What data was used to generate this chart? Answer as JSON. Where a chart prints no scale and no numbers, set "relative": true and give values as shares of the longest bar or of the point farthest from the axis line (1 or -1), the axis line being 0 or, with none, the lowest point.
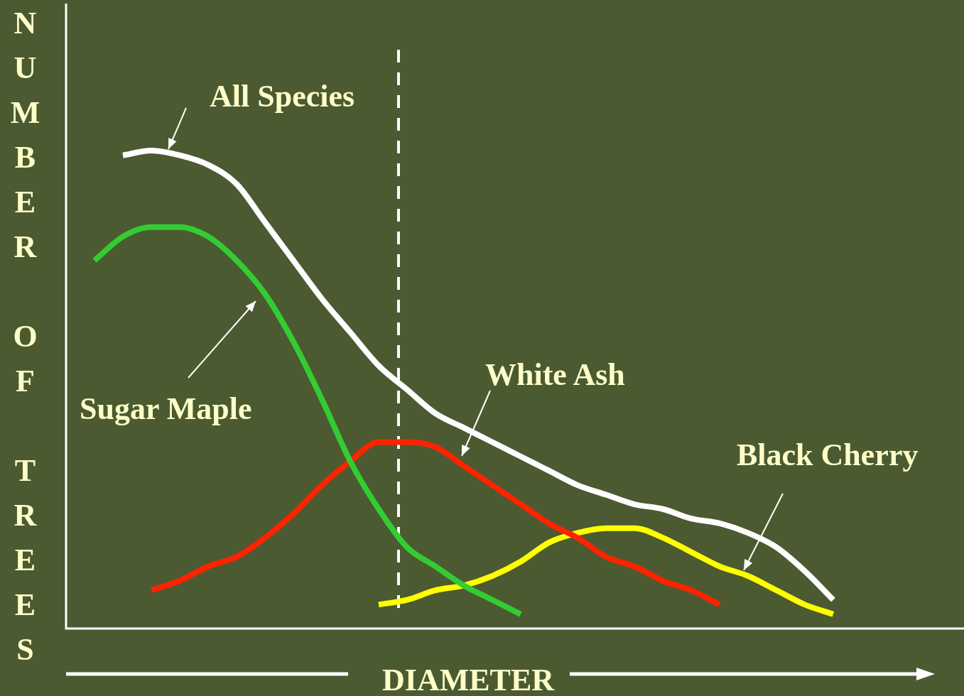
{
  "chart_data": {
    "type": "line",
    "relative": true,
    "xlabel": "DIAMETER",
    "ylabel": "NUMBER OF TREES",
    "legend": false,
    "marker": "none",
    "line_style": "solid",
    "categories": [
      null,
      null,
      null,
      null,
      null,
      null,
      null,
      null,
      null,
      null,
      null,
      null,
      null,
      null,
      null,
      null,
      null,
      null,
      null,
      null,
      null,
      null,
      null,
      null,
      null,
      null,
      null,
      null,
      null,
      null,
      null,
      null
    ],
    "series": [
      {
        "name": "All Species",
        "color": "#ffffff",
        "values": [
          null,
          null,
          0.99,
          1.0,
          0.99,
          0.97,
          0.93,
          0.85,
          0.77,
          0.69,
          0.62,
          0.55,
          0.5,
          0.45,
          0.42,
          0.39,
          0.36,
          0.33,
          0.3,
          0.28,
          0.26,
          0.25,
          0.23,
          0.22,
          0.2,
          0.17,
          0.12,
          0.06,
          null,
          null,
          null,
          null
        ]
      },
      {
        "name": "Sugar Maple",
        "color": "#33cc33",
        "values": [
          null,
          0.77,
          0.82,
          0.84,
          0.84,
          0.82,
          0.77,
          0.7,
          0.6,
          0.48,
          0.35,
          0.25,
          0.17,
          0.13,
          0.09,
          0.06,
          0.03,
          null,
          null,
          null,
          null,
          null,
          null,
          null,
          null,
          null,
          null,
          null,
          null,
          null,
          null,
          null
        ]
      },
      {
        "name": "White Ash",
        "color": "#ff2200",
        "values": [
          null,
          null,
          null,
          0.08,
          0.1,
          0.13,
          0.15,
          0.19,
          0.24,
          0.3,
          0.35,
          0.39,
          0.39,
          0.38,
          0.34,
          0.3,
          0.26,
          0.22,
          0.19,
          0.15,
          0.13,
          0.1,
          0.08,
          0.05,
          null,
          null,
          null,
          null,
          null,
          null,
          null,
          null
        ]
      },
      {
        "name": "Black Cherry",
        "color": "#ffff00",
        "values": [
          null,
          null,
          null,
          null,
          null,
          null,
          null,
          null,
          null,
          null,
          null,
          0.05,
          0.06,
          0.08,
          0.09,
          0.11,
          0.14,
          0.18,
          0.2,
          0.21,
          0.21,
          0.19,
          0.16,
          0.13,
          0.11,
          0.08,
          0.05,
          0.03,
          null,
          null,
          null,
          null
        ]
      }
    ]
  }
}
